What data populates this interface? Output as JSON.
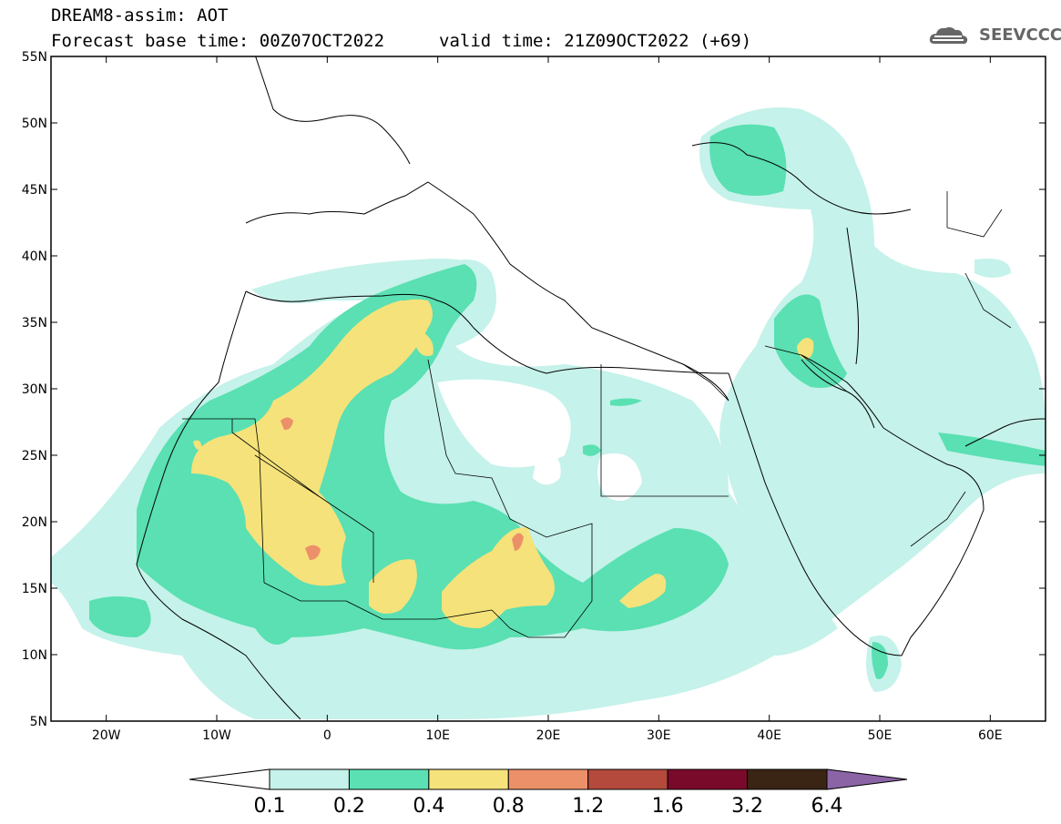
{
  "header": {
    "line1": "DREAM8-assim: AOT",
    "line2": "Forecast base time: 00Z07OCT2022",
    "valid": "valid time: 21Z09OCT2022 (+69)",
    "logo_text": "SEEVCCC"
  },
  "map": {
    "lon_range": [
      -25,
      65
    ],
    "lat_range": [
      5,
      55
    ],
    "lon_ticks": [
      {
        "lon": -20,
        "label": "20W"
      },
      {
        "lon": -10,
        "label": "10W"
      },
      {
        "lon": 0,
        "label": "0"
      },
      {
        "lon": 10,
        "label": "10E"
      },
      {
        "lon": 20,
        "label": "20E"
      },
      {
        "lon": 30,
        "label": "30E"
      },
      {
        "lon": 40,
        "label": "40E"
      },
      {
        "lon": 50,
        "label": "50E"
      },
      {
        "lon": 60,
        "label": "60E"
      }
    ],
    "lat_ticks": [
      {
        "lat": 55,
        "label": "55N"
      },
      {
        "lat": 50,
        "label": "50N"
      },
      {
        "lat": 45,
        "label": "45N"
      },
      {
        "lat": 40,
        "label": "40N"
      },
      {
        "lat": 35,
        "label": "35N"
      },
      {
        "lat": 30,
        "label": "30N"
      },
      {
        "lat": 25,
        "label": "25N"
      },
      {
        "lat": 20,
        "label": "20N"
      },
      {
        "lat": 15,
        "label": "15N"
      },
      {
        "lat": 10,
        "label": "10N"
      },
      {
        "lat": 5,
        "label": "5N"
      }
    ]
  },
  "colorbar": {
    "levels": [
      "0.1",
      "0.2",
      "0.4",
      "0.8",
      "1.2",
      "1.6",
      "3.2",
      "6.4"
    ],
    "colors": [
      "#ffffff",
      "#c5f2ea",
      "#5ae0b2",
      "#f5e27a",
      "#ec906a",
      "#b34a3c",
      "#7a0a2a",
      "#3a2414",
      "#8b64a6"
    ]
  }
}
